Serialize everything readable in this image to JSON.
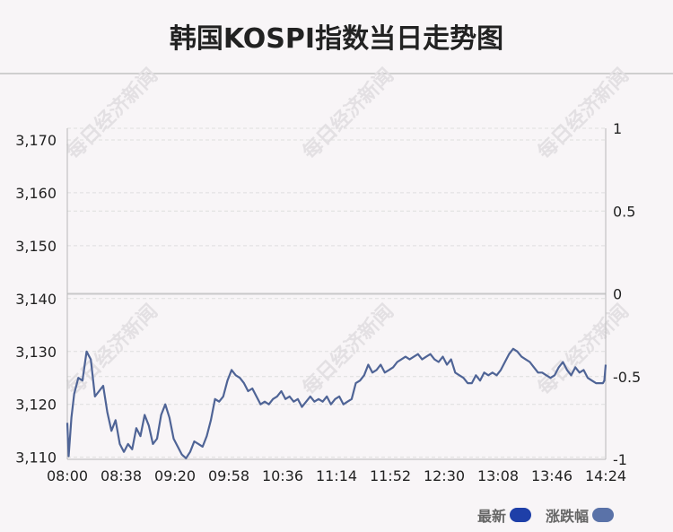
{
  "title": "韩国KOSPI指数当日走势图",
  "watermark": "每日经济新闻",
  "legend": [
    {
      "label": "最新",
      "color": "#1e3fa8"
    },
    {
      "label": "涨跌幅",
      "color": "#5a72a8"
    }
  ],
  "colors": {
    "line": "#4f6496",
    "grid": "#dedede",
    "zero_line": "#c8c8c8",
    "axis": "#b8b8b8",
    "text": "#222222"
  },
  "chart_data": {
    "type": "line",
    "title": "韩国KOSPI指数当日走势图",
    "x_ticks": [
      "08:00",
      "08:38",
      "09:20",
      "09:58",
      "10:36",
      "11:14",
      "11:52",
      "12:30",
      "13:08",
      "13:46",
      "14:24"
    ],
    "y_left_ticks": [
      "3,110",
      "3,120",
      "3,130",
      "3,140",
      "3,150",
      "3,160",
      "3,170"
    ],
    "y_left_values": [
      3110,
      3120,
      3130,
      3140,
      3150,
      3160,
      3170
    ],
    "y_left_range": [
      3109.6,
      3172.2
    ],
    "y_right_ticks": [
      "-1",
      "-0.5",
      "0",
      "0.5",
      "1"
    ],
    "y_right_values": [
      -1,
      -0.5,
      0,
      0.5,
      1
    ],
    "y_right_range": [
      -1,
      1
    ],
    "x_range_minutes": [
      0,
      390
    ],
    "reference_close": 3140.2,
    "grid": true,
    "series": [
      {
        "name": "最新",
        "x_minutes": [
          0,
          1,
          3,
          5,
          8,
          11,
          14,
          17,
          20,
          23,
          26,
          29,
          32,
          35,
          38,
          41,
          44,
          47,
          50,
          53,
          56,
          59,
          62,
          65,
          68,
          71,
          74,
          77,
          80,
          83,
          86,
          89,
          92,
          95,
          98,
          101,
          104,
          107,
          110,
          113,
          116,
          119,
          122,
          125,
          128,
          131,
          134,
          137,
          140,
          143,
          146,
          149,
          152,
          155,
          158,
          161,
          164,
          167,
          170,
          173,
          176,
          179,
          182,
          185,
          188,
          191,
          194,
          197,
          200,
          203,
          206,
          209,
          212,
          215,
          218,
          221,
          224,
          227,
          230,
          233,
          236,
          239,
          242,
          245,
          248,
          251,
          254,
          257,
          260,
          263,
          266,
          269,
          272,
          275,
          278,
          281,
          284,
          287,
          290,
          293,
          296,
          299,
          302,
          305,
          308,
          311,
          314,
          317,
          320,
          323,
          326,
          329,
          332,
          335,
          338,
          341,
          344,
          347,
          350,
          353,
          356,
          359,
          362,
          365,
          368,
          371,
          374,
          377,
          380,
          383,
          386,
          388,
          389,
          390
        ],
        "values": [
          3116.5,
          3110.2,
          3117.5,
          3122.0,
          3125.0,
          3124.5,
          3130.0,
          3128.5,
          3121.5,
          3122.5,
          3123.5,
          3118.5,
          3115.0,
          3117.0,
          3112.5,
          3111.0,
          3112.5,
          3111.5,
          3115.5,
          3114.0,
          3118.0,
          3116.0,
          3112.5,
          3113.5,
          3118.0,
          3120.0,
          3117.5,
          3113.5,
          3112.0,
          3110.5,
          3109.8,
          3111.0,
          3113.0,
          3112.5,
          3112.0,
          3114.0,
          3117.0,
          3121.0,
          3120.5,
          3121.5,
          3124.5,
          3126.5,
          3125.5,
          3125.0,
          3124.0,
          3122.5,
          3123.0,
          3121.5,
          3120.0,
          3120.5,
          3120.0,
          3121.0,
          3121.5,
          3122.5,
          3121.0,
          3121.5,
          3120.5,
          3121.0,
          3119.5,
          3120.5,
          3121.5,
          3120.5,
          3121.0,
          3120.5,
          3121.5,
          3120.0,
          3121.0,
          3121.5,
          3120.0,
          3120.5,
          3121.0,
          3124.0,
          3124.5,
          3125.5,
          3127.5,
          3126.0,
          3126.5,
          3127.5,
          3126.0,
          3126.5,
          3127.0,
          3128.0,
          3128.5,
          3129.0,
          3128.5,
          3129.0,
          3129.5,
          3128.5,
          3129.0,
          3129.5,
          3128.5,
          3128.0,
          3129.0,
          3127.5,
          3128.5,
          3126.0,
          3125.5,
          3125.0,
          3124.0,
          3124.0,
          3125.5,
          3124.5,
          3126.0,
          3125.5,
          3126.0,
          3125.5,
          3126.5,
          3128.0,
          3129.5,
          3130.5,
          3130.0,
          3129.0,
          3128.5,
          3128.0,
          3127.0,
          3126.0,
          3126.0,
          3125.5,
          3125.0,
          3125.5,
          3127.0,
          3128.0,
          3126.5,
          3125.5,
          3127.0,
          3126.0,
          3126.5,
          3125.0,
          3124.5,
          3124.0,
          3124.0,
          3124.0,
          3124.5,
          3127.5
        ]
      }
    ]
  }
}
